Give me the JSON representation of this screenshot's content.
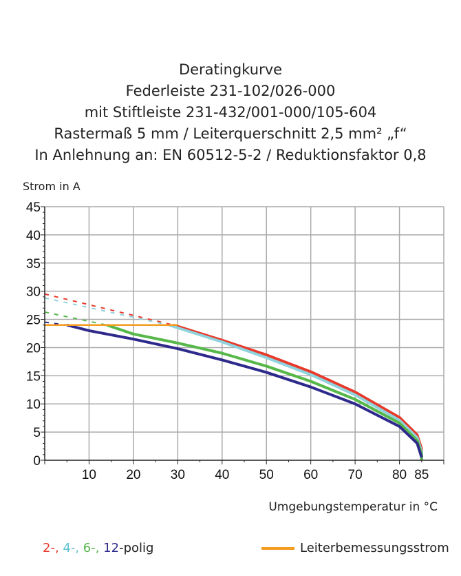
{
  "chart_data": {
    "type": "line",
    "title": [
      "Deratingkurve",
      "Federleiste 231-102/026-000",
      "mit Stiftleiste 231-432/001-000/105-604",
      "Rastermaß 5 mm / Leiterquerschnitt 2,5 mm² „f“",
      "In Anlehnung an: EN 60512-5-2 / Reduktionsfaktor 0,8"
    ],
    "xlabel": "Umgebungstemperatur in °C",
    "ylabel": "Strom in A",
    "xlim": [
      0,
      90
    ],
    "ylim": [
      0,
      45
    ],
    "xticks": [
      "10",
      "20",
      "30",
      "40",
      "50",
      "60",
      "70",
      "80",
      "85"
    ],
    "xtick_values": [
      10,
      20,
      30,
      40,
      50,
      60,
      70,
      80,
      85
    ],
    "yticks": [
      "0",
      "5",
      "10",
      "15",
      "20",
      "25",
      "30",
      "35",
      "40",
      "45"
    ],
    "grid": true,
    "series": [
      {
        "name": "2-",
        "color": "#e8392a",
        "dashed": [
          [
            0,
            29.5
          ],
          [
            29,
            24
          ]
        ],
        "solid": [
          [
            29,
            24
          ],
          [
            40,
            21.3
          ],
          [
            50,
            18.7
          ],
          [
            60,
            15.7
          ],
          [
            70,
            12.1
          ],
          [
            80,
            7.6
          ],
          [
            84,
            4.5
          ],
          [
            85,
            2
          ],
          [
            85,
            0
          ]
        ]
      },
      {
        "name": "4-",
        "color": "#8fd3dc",
        "dashed": [
          [
            0,
            28.8
          ],
          [
            28,
            24
          ]
        ],
        "solid": [
          [
            28,
            24
          ],
          [
            40,
            21
          ],
          [
            50,
            18.2
          ],
          [
            60,
            15.2
          ],
          [
            70,
            11.6
          ],
          [
            80,
            7.1
          ],
          [
            84,
            4
          ],
          [
            85,
            1.5
          ],
          [
            85,
            0
          ]
        ]
      },
      {
        "name": "6-",
        "color": "#55b848",
        "dashed": [
          [
            0,
            26.3
          ],
          [
            14,
            24
          ]
        ],
        "solid": [
          [
            14,
            24
          ],
          [
            20,
            22.4
          ],
          [
            30,
            20.8
          ],
          [
            40,
            19
          ],
          [
            50,
            16.7
          ],
          [
            60,
            14
          ],
          [
            70,
            10.8
          ],
          [
            80,
            6.6
          ],
          [
            84,
            3.5
          ],
          [
            85,
            1
          ],
          [
            85,
            0
          ]
        ]
      },
      {
        "name": "12-",
        "color": "#2e2a8c",
        "dashed": [
          [
            0,
            24.5
          ],
          [
            5,
            24
          ]
        ],
        "solid": [
          [
            5,
            24
          ],
          [
            10,
            23
          ],
          [
            20,
            21.5
          ],
          [
            30,
            19.8
          ],
          [
            40,
            17.8
          ],
          [
            50,
            15.6
          ],
          [
            60,
            13
          ],
          [
            70,
            10
          ],
          [
            80,
            6
          ],
          [
            84,
            3
          ],
          [
            85,
            0.5
          ]
        ]
      },
      {
        "name": "Leiterbemessungsstrom",
        "color": "#f39c1f",
        "solid": [
          [
            0,
            24
          ],
          [
            30,
            24
          ]
        ]
      }
    ],
    "legend": {
      "polig_suffix": "-polig",
      "items": [
        "2-, ",
        "4-, ",
        "6-, ",
        "12"
      ],
      "rated": "Leiterbemessungsstrom"
    }
  }
}
